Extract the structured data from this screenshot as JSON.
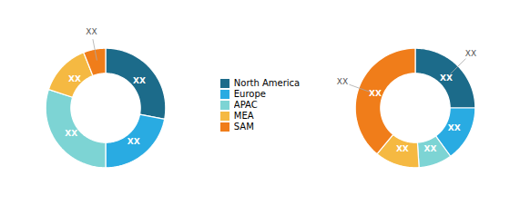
{
  "chart_data": [
    {
      "type": "donut",
      "categories": [
        "North America",
        "Europe",
        "APAC",
        "MEA",
        "SAM"
      ],
      "values": [
        28,
        22,
        30,
        14,
        6
      ],
      "colors": [
        "#1c6b8a",
        "#29abe2",
        "#7dd4d4",
        "#f5b942",
        "#f07d1a"
      ],
      "data_labels": true,
      "value_labels": [
        "XX",
        "XX",
        "XX",
        "XX",
        null
      ],
      "annotations": [
        {
          "text": "XX",
          "category": "SAM",
          "color": "#555555"
        }
      ],
      "legend": "right"
    },
    {
      "type": "donut",
      "categories": [
        "North America",
        "Europe",
        "APAC",
        "MEA",
        "SAM"
      ],
      "values": [
        25,
        15,
        9,
        12,
        39
      ],
      "colors": [
        "#1c6b8a",
        "#29abe2",
        "#7dd4d4",
        "#f5b942",
        "#f07d1a"
      ],
      "data_labels": true,
      "value_labels": [
        "XX",
        "XX",
        "XX",
        "XX",
        "XX"
      ],
      "annotations": [
        {
          "text": "XX",
          "category": "SAM",
          "color": "#555555"
        },
        {
          "text": "XX",
          "category": "North America",
          "color": "#555555"
        }
      ]
    }
  ]
}
